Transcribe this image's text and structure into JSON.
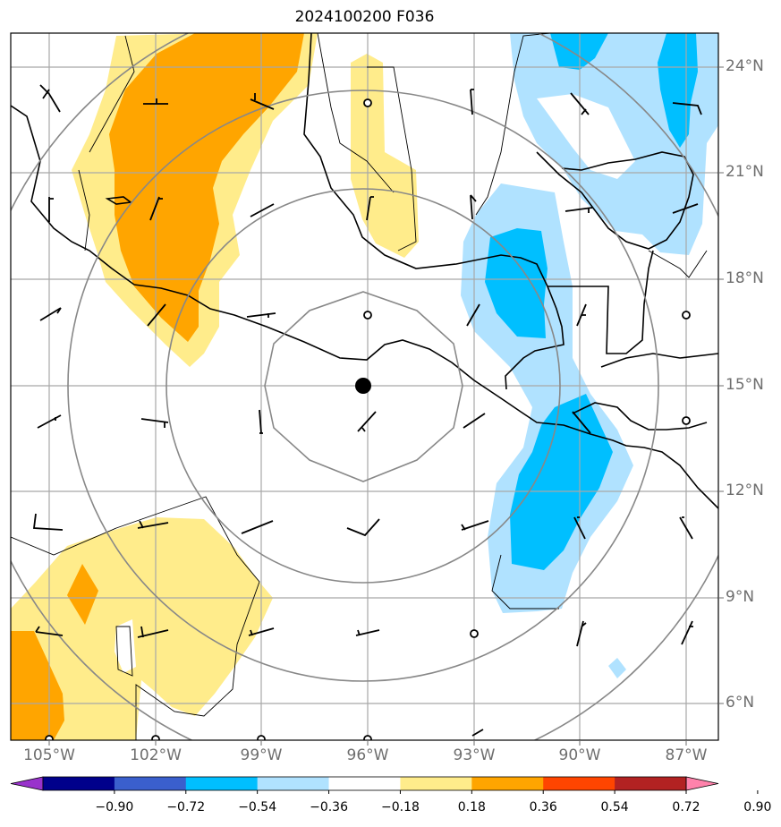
{
  "title": "2024100200 F036",
  "lat_labels": [
    "24°N",
    "21°N",
    "18°N",
    "15°N",
    "12°N",
    "9°N",
    "6°N"
  ],
  "lon_labels": [
    "105°W",
    "102°W",
    "99°W",
    "96°W",
    "93°W",
    "90°W",
    "87°W"
  ],
  "colorbar": {
    "tick_labels": [
      "−0.90",
      "−0.72",
      "−0.54",
      "−0.36",
      "−0.18",
      "0.18",
      "0.36",
      "0.54",
      "0.72",
      "0.90"
    ],
    "colors": [
      "#9932cc",
      "#00008b",
      "#3a5fcd",
      "#00bfff",
      "#b0e2ff",
      "#ffffff",
      "#ffec8b",
      "#ffa500",
      "#ff4500",
      "#b22222",
      "#ff82ab"
    ]
  },
  "center_marker": {
    "lat": 15.0,
    "lon": -96.0
  },
  "range_rings_km": [
    250,
    500,
    750,
    1000
  ]
}
